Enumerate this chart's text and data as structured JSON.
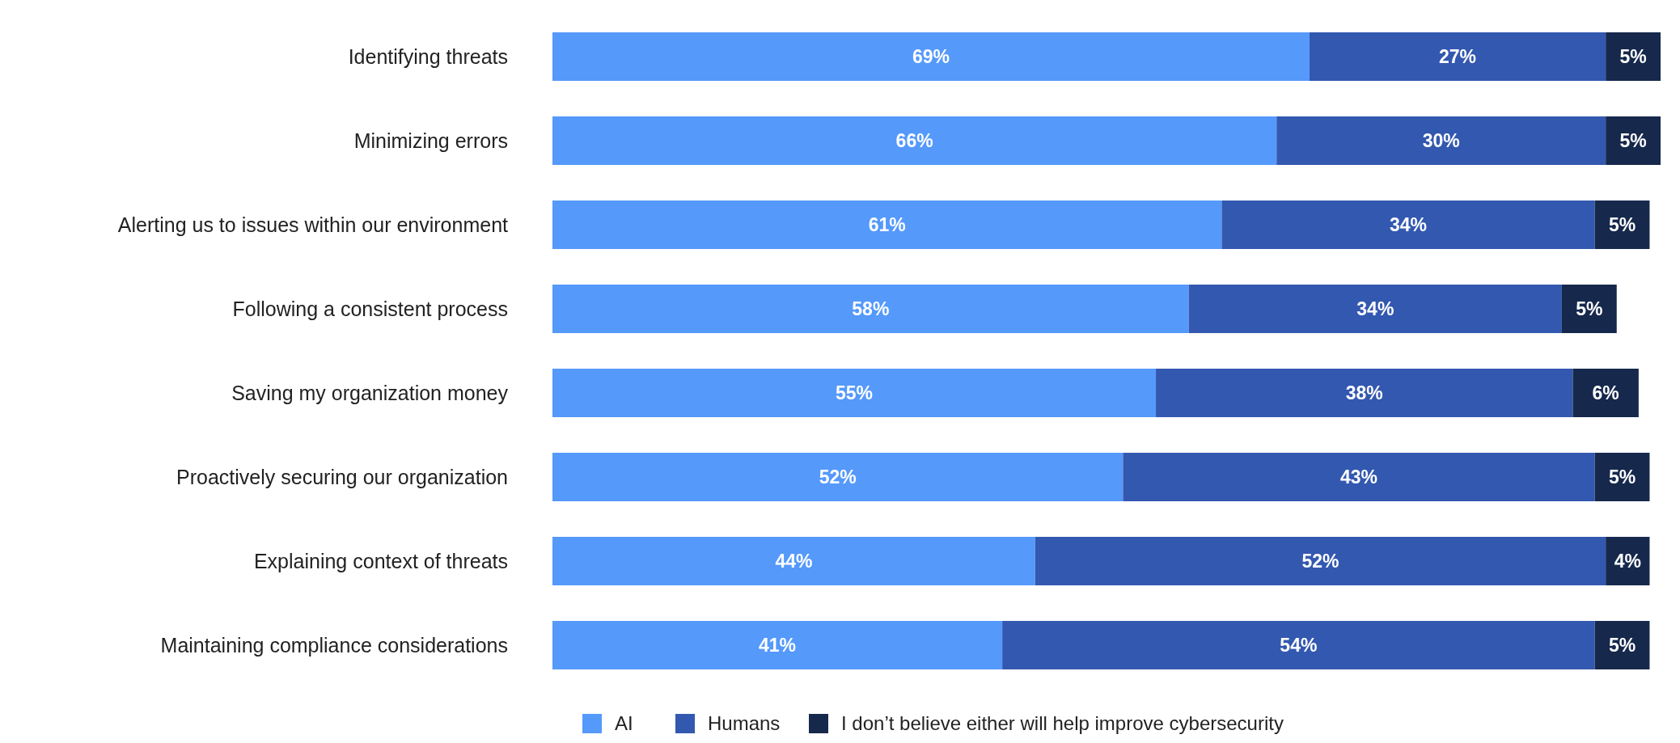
{
  "chart_data": {
    "type": "bar",
    "orientation": "horizontal",
    "stacked": true,
    "legend": "bottom",
    "categories": [
      "Identifying threats",
      "Minimizing errors",
      "Alerting us to issues within our environment",
      "Following a consistent process",
      "Saving my organization money",
      "Proactively securing our organization",
      "Explaining context of threats",
      "Maintaining compliance considerations"
    ],
    "series": [
      {
        "name": "AI",
        "color": "#5599fb",
        "values": [
          69,
          66,
          61,
          58,
          55,
          52,
          44,
          41
        ],
        "value_labels": [
          "69%",
          "66%",
          "61%",
          "58%",
          "55%",
          "52%",
          "44%",
          "41%"
        ]
      },
      {
        "name": "Humans",
        "color": "#3358b0",
        "values": [
          27,
          30,
          34,
          34,
          38,
          43,
          52,
          54
        ],
        "value_labels": [
          "27%",
          "30%",
          "34%",
          "34%",
          "38%",
          "43%",
          "52%",
          "54%"
        ]
      },
      {
        "name": "I don’t believe either will help improve cybersecurity",
        "color": "#16284c",
        "values": [
          5,
          5,
          5,
          5,
          6,
          5,
          4,
          5
        ],
        "value_labels": [
          "5%",
          "5%",
          "5%",
          "5%",
          "6%",
          "5%",
          "4%",
          "5%"
        ]
      }
    ]
  }
}
